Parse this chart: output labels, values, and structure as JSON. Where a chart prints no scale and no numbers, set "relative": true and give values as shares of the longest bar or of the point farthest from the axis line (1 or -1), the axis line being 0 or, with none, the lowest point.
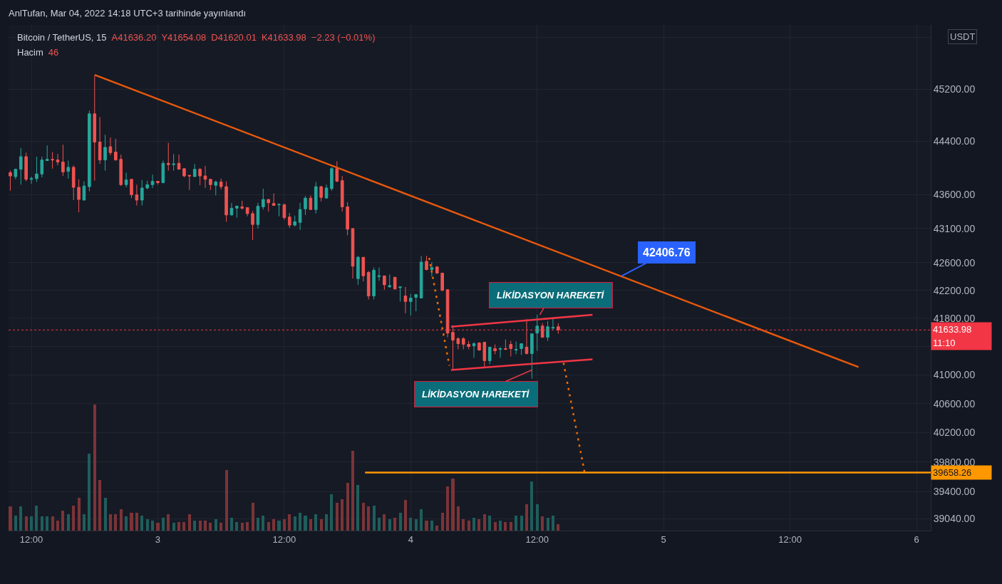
{
  "chart_data": [
    {
      "type": "candlestick",
      "title": "Bitcoin / TetherUS, 15",
      "annotations": [
        "AnlTufan, Mar 04, 2022 14:18 UTC+3 tarihinde yayınlandı",
        "A41636.20",
        "Y41654.08",
        "D41620.01",
        "K41633.98",
        "−2.23 (−0.01%)",
        "USDT",
        "11:10",
        "39658.26",
        {
          "text": "42406.76",
          "x": "2022-03-04T20:00",
          "y": 42406.76
        },
        {
          "text": "LİKİDASYON HAREKETİ",
          "x": "2022-03-04T12:15",
          "y": 41850
        },
        {
          "text": "LİKİDASYON HAREKETİ",
          "x": "2022-03-04T11:30",
          "y": 41070
        }
      ],
      "x": [
        "2022-03-02T10:00",
        "2022-03-02T10:30",
        "2022-03-02T11:00",
        "2022-03-02T11:30",
        "2022-03-02T12:00",
        "2022-03-02T12:30",
        "2022-03-02T13:00",
        "2022-03-02T13:30",
        "2022-03-02T14:00",
        "2022-03-02T14:30",
        "2022-03-02T15:00",
        "2022-03-02T15:30",
        "2022-03-02T16:00",
        "2022-03-02T16:30",
        "2022-03-02T17:00",
        "2022-03-02T17:30",
        "2022-03-02T18:00",
        "2022-03-02T18:30",
        "2022-03-02T19:00",
        "2022-03-02T19:30",
        "2022-03-02T20:00",
        "2022-03-02T20:30",
        "2022-03-02T21:00",
        "2022-03-02T21:30",
        "2022-03-02T22:00",
        "2022-03-02T22:30",
        "2022-03-02T23:00",
        "2022-03-02T23:30",
        "2022-03-03T00:00",
        "2022-03-03T00:30",
        "2022-03-03T01:00",
        "2022-03-03T01:30",
        "2022-03-03T02:00",
        "2022-03-03T02:30",
        "2022-03-03T03:00",
        "2022-03-03T03:30",
        "2022-03-03T04:00",
        "2022-03-03T04:30",
        "2022-03-03T05:00",
        "2022-03-03T05:30",
        "2022-03-03T06:00",
        "2022-03-03T06:30",
        "2022-03-03T07:00",
        "2022-03-03T07:30",
        "2022-03-03T08:00",
        "2022-03-03T08:30",
        "2022-03-03T09:00",
        "2022-03-03T09:30",
        "2022-03-03T10:00",
        "2022-03-03T10:30",
        "2022-03-03T11:00",
        "2022-03-03T11:30",
        "2022-03-03T12:00",
        "2022-03-03T12:30",
        "2022-03-03T13:00",
        "2022-03-03T13:30",
        "2022-03-03T14:00",
        "2022-03-03T14:30",
        "2022-03-03T15:00",
        "2022-03-03T15:30",
        "2022-03-03T16:00",
        "2022-03-03T16:30",
        "2022-03-03T17:00",
        "2022-03-03T17:30",
        "2022-03-03T18:00",
        "2022-03-03T18:30",
        "2022-03-03T19:00",
        "2022-03-03T19:30",
        "2022-03-03T20:00",
        "2022-03-03T20:30",
        "2022-03-03T21:00",
        "2022-03-03T21:30",
        "2022-03-03T22:00",
        "2022-03-03T22:30",
        "2022-03-03T23:00",
        "2022-03-03T23:30",
        "2022-03-04T00:00",
        "2022-03-04T00:30",
        "2022-03-04T01:00",
        "2022-03-04T01:30",
        "2022-03-04T02:00",
        "2022-03-04T02:30",
        "2022-03-04T03:00",
        "2022-03-04T03:30",
        "2022-03-04T04:00",
        "2022-03-04T04:30",
        "2022-03-04T05:00",
        "2022-03-04T05:30",
        "2022-03-04T06:00",
        "2022-03-04T06:30",
        "2022-03-04T07:00",
        "2022-03-04T07:30",
        "2022-03-04T08:00",
        "2022-03-04T08:30",
        "2022-03-04T09:00",
        "2022-03-04T09:30",
        "2022-03-04T10:00",
        "2022-03-04T10:30",
        "2022-03-04T11:00",
        "2022-03-04T11:30",
        "2022-03-04T12:00",
        "2022-03-04T12:30",
        "2022-03-04T13:00",
        "2022-03-04T13:30",
        "2022-03-04T14:00"
      ],
      "ohlc": [
        [
          43930,
          43960,
          43660,
          43880
        ],
        [
          43870,
          43990,
          43830,
          43980
        ],
        [
          43980,
          44300,
          43750,
          44170
        ],
        [
          44170,
          44230,
          43800,
          43830
        ],
        [
          43830,
          43870,
          43760,
          43840
        ],
        [
          43840,
          44170,
          43790,
          43910
        ],
        [
          43910,
          44170,
          43860,
          44120
        ],
        [
          44110,
          44340,
          44110,
          44130
        ],
        [
          44130,
          44240,
          43990,
          44120
        ],
        [
          44120,
          44210,
          44040,
          44090
        ],
        [
          44090,
          44350,
          43880,
          43940
        ],
        [
          43950,
          44110,
          43840,
          44010
        ],
        [
          44010,
          44040,
          43520,
          43710
        ],
        [
          43710,
          43830,
          43340,
          43530
        ],
        [
          43520,
          43800,
          43520,
          43730
        ],
        [
          43720,
          44870,
          43650,
          44820
        ],
        [
          44820,
          45410,
          43810,
          44390
        ],
        [
          44390,
          44770,
          44060,
          44120
        ],
        [
          44120,
          44500,
          43960,
          44310
        ],
        [
          44320,
          44460,
          44190,
          44230
        ],
        [
          44240,
          44440,
          44110,
          44120
        ],
        [
          44130,
          44200,
          43730,
          43750
        ],
        [
          43750,
          43930,
          43710,
          43820
        ],
        [
          43830,
          43830,
          43550,
          43600
        ],
        [
          43600,
          43750,
          43440,
          43520
        ],
        [
          43520,
          43820,
          43440,
          43700
        ],
        [
          43700,
          43810,
          43680,
          43750
        ],
        [
          43750,
          43900,
          43700,
          43800
        ],
        [
          43800,
          43800,
          43750,
          43780
        ],
        [
          43780,
          44110,
          43770,
          44070
        ],
        [
          44070,
          44380,
          43960,
          44050
        ],
        [
          44050,
          44210,
          43960,
          44060
        ],
        [
          44070,
          44200,
          43980,
          43980
        ],
        [
          43990,
          43990,
          43860,
          43880
        ],
        [
          43890,
          43890,
          43670,
          43880
        ],
        [
          43870,
          44060,
          43870,
          43980
        ],
        [
          43980,
          44000,
          43740,
          43880
        ],
        [
          43880,
          44030,
          43700,
          43830
        ],
        [
          43830,
          43830,
          43670,
          43750
        ],
        [
          43740,
          43810,
          43590,
          43790
        ],
        [
          43790,
          43840,
          43680,
          43720
        ],
        [
          43720,
          43800,
          43200,
          43300
        ],
        [
          43300,
          43480,
          43290,
          43400
        ],
        [
          43400,
          43440,
          43260,
          43430
        ],
        [
          43420,
          43510,
          43380,
          43400
        ],
        [
          43410,
          43410,
          43280,
          43320
        ],
        [
          43320,
          43360,
          42930,
          43160
        ],
        [
          43160,
          43480,
          43100,
          43430
        ],
        [
          43420,
          43690,
          43380,
          43530
        ],
        [
          43530,
          43530,
          43350,
          43480
        ],
        [
          43470,
          43620,
          43440,
          43440
        ],
        [
          43450,
          43470,
          43280,
          43455
        ],
        [
          43450,
          43470,
          43230,
          43260
        ],
        [
          43270,
          43330,
          43110,
          43150
        ],
        [
          43150,
          43290,
          43130,
          43200
        ],
        [
          43190,
          43480,
          43080,
          43380
        ],
        [
          43390,
          43580,
          43300,
          43550
        ],
        [
          43550,
          43590,
          43380,
          43380
        ],
        [
          43380,
          43790,
          43320,
          43720
        ],
        [
          43720,
          43730,
          43500,
          43560
        ],
        [
          43550,
          43750,
          43550,
          43700
        ],
        [
          43690,
          44010,
          43660,
          43990
        ],
        [
          43990,
          44100,
          43790,
          43800
        ],
        [
          43810,
          43880,
          43350,
          43420
        ],
        [
          43420,
          43490,
          43000,
          43090
        ],
        [
          43100,
          43100,
          42370,
          42550
        ],
        [
          42370,
          42700,
          42280,
          42680
        ],
        [
          42680,
          42680,
          42330,
          42410
        ],
        [
          42460,
          42480,
          42070,
          42120
        ],
        [
          42120,
          42530,
          42070,
          42490
        ],
        [
          42400,
          42530,
          42340,
          42410
        ],
        [
          42410,
          42410,
          42210,
          42280
        ],
        [
          42250,
          42430,
          42240,
          42270
        ],
        [
          42390,
          42390,
          42220,
          42220
        ],
        [
          42240,
          42250,
          42040,
          42250
        ],
        [
          42120,
          42250,
          41870,
          42040
        ],
        [
          42040,
          42150,
          41840,
          42090
        ],
        [
          42100,
          42140,
          41900,
          42140
        ],
        [
          42090,
          42700,
          42090,
          42610
        ],
        [
          42620,
          42700,
          42490,
          42500
        ],
        [
          42500,
          42610,
          42400,
          42530
        ],
        [
          42540,
          42550,
          42440,
          42450
        ],
        [
          42450,
          42450,
          42190,
          42200
        ],
        [
          42210,
          42210,
          41530,
          41590
        ],
        [
          41600,
          41700,
          41080,
          41490
        ],
        [
          41510,
          41530,
          41360,
          41440
        ],
        [
          41510,
          41530,
          41360,
          41430
        ],
        [
          41430,
          41480,
          41360,
          41400
        ],
        [
          41410,
          41460,
          41240,
          41440
        ],
        [
          41450,
          41460,
          41340,
          41350
        ],
        [
          41460,
          41460,
          41110,
          41200
        ],
        [
          41200,
          41390,
          41150,
          41390
        ],
        [
          41370,
          41430,
          41290,
          41340
        ],
        [
          41360,
          41390,
          41240,
          41370
        ],
        [
          41370,
          41500,
          41350,
          41360
        ],
        [
          41430,
          41480,
          41260,
          41370
        ],
        [
          41350,
          41470,
          41290,
          41360
        ],
        [
          41370,
          41440,
          41280,
          41440
        ],
        [
          41390,
          41790,
          41290,
          41300
        ],
        [
          41300,
          41580,
          40950,
          41580
        ],
        [
          41590,
          41850,
          41340,
          41690
        ],
        [
          41690,
          41730,
          41530,
          41530
        ],
        [
          41530,
          41760,
          41480,
          41680
        ],
        [
          41660,
          41790,
          41640,
          41670
        ],
        [
          41680,
          41730,
          41580,
          41634
        ]
      ],
      "colors": [
        "#ef5350",
        "#26a69a",
        "#26a69a",
        "#ef5350",
        "#26a69a",
        "#26a69a",
        "#26a69a",
        "#26a69a",
        "#ef5350",
        "#ef5350",
        "#ef5350",
        "#26a69a",
        "#ef5350",
        "#ef5350",
        "#26a69a",
        "#26a69a",
        "#ef5350",
        "#ef5350",
        "#26a69a",
        "#ef5350",
        "#ef5350",
        "#ef5350",
        "#26a69a",
        "#ef5350",
        "#ef5350",
        "#26a69a",
        "#26a69a",
        "#26a69a",
        "#ef5350",
        "#26a69a",
        "#ef5350",
        "#26a69a",
        "#ef5350",
        "#ef5350",
        "#ef5350",
        "#26a69a",
        "#ef5350",
        "#ef5350",
        "#ef5350",
        "#26a69a",
        "#ef5350",
        "#ef5350",
        "#26a69a",
        "#26a69a",
        "#ef5350",
        "#ef5350",
        "#ef5350",
        "#26a69a",
        "#26a69a",
        "#ef5350",
        "#ef5350",
        "#26a69a",
        "#ef5350",
        "#ef5350",
        "#26a69a",
        "#26a69a",
        "#26a69a",
        "#ef5350",
        "#26a69a",
        "#ef5350",
        "#26a69a",
        "#26a69a",
        "#ef5350",
        "#ef5350",
        "#ef5350",
        "#ef5350",
        "#26a69a",
        "#ef5350",
        "#ef5350",
        "#26a69a",
        "#26a69a",
        "#ef5350",
        "#26a69a",
        "#ef5350",
        "#26a69a",
        "#ef5350",
        "#26a69a",
        "#26a69a",
        "#26a69a",
        "#ef5350",
        "#26a69a",
        "#ef5350",
        "#ef5350",
        "#ef5350",
        "#ef5350",
        "#ef5350",
        "#ef5350",
        "#ef5350",
        "#26a69a",
        "#ef5350",
        "#ef5350",
        "#26a69a",
        "#ef5350",
        "#26a69a",
        "#ef5350",
        "#ef5350",
        "#26a69a",
        "#26a69a",
        "#ef5350",
        "#26a69a",
        "#26a69a",
        "#ef5350",
        "#26a69a",
        "#26a69a",
        "#ef5350"
      ],
      "series": [
        {
          "type": "line",
          "color": "#e8590c",
          "x": [
            "2022-03-02T18:00",
            "2022-03-05T18:30"
          ],
          "values": [
            45420,
            41110
          ]
        },
        {
          "type": "line",
          "color": "#f23645",
          "x": [
            "2022-03-04T03:50",
            "2022-03-04T17:15"
          ],
          "values": [
            41680,
            41850
          ]
        },
        {
          "type": "line",
          "color": "#f23645",
          "x": [
            "2022-03-04T03:50",
            "2022-03-04T17:15"
          ],
          "values": [
            41070,
            41220
          ]
        },
        {
          "type": "line",
          "color": "#ef6c00",
          "line_style": "dotted",
          "x": [
            "2022-03-04T01:45",
            "2022-03-04T03:40"
          ],
          "values": [
            42670,
            41130
          ]
        },
        {
          "type": "line",
          "color": "#ef6c00",
          "line_style": "dotted",
          "x": [
            "2022-03-04T14:30",
            "2022-03-04T16:30"
          ],
          "values": [
            41170,
            39660
          ]
        },
        {
          "type": "line",
          "color": "#ff9800",
          "x": [
            "2022-03-03T19:40",
            "2022-03-06T01:21"
          ],
          "values": [
            39658.26,
            39658.26
          ]
        }
      ],
      "ref_lines": [
        {
          "axis": "y",
          "value": 41633.98,
          "label": "41633.98",
          "color": "#f23645",
          "line_style": "dotted"
        }
      ],
      "xlim": [
        "2022-03-02T09:50",
        "2022-03-06T01:21"
      ],
      "xticks": [
        {
          "value": "2022-03-02T12:00",
          "label": "12:00"
        },
        {
          "value": "2022-03-03",
          "label": "3"
        },
        {
          "value": "2022-03-03T12:00",
          "label": "12:00"
        },
        {
          "value": "2022-03-04",
          "label": "4"
        },
        {
          "value": "2022-03-04T12:00",
          "label": "12:00"
        },
        {
          "value": "2022-03-05",
          "label": "5"
        },
        {
          "value": "2022-03-05T12:00",
          "label": "12:00"
        },
        {
          "value": "2022-03-06",
          "label": "6"
        }
      ],
      "ylim": [
        38880,
        46200
      ],
      "yticks": [
        {
          "value": 39040,
          "label": "39040.00"
        },
        {
          "value": 39400,
          "label": "39400.00"
        },
        {
          "value": 39800,
          "label": "39800.00"
        },
        {
          "value": 40200,
          "label": "40200.00"
        },
        {
          "value": 40600,
          "label": "40600.00"
        },
        {
          "value": 41000,
          "label": "41000.00"
        },
        {
          "value": 41400,
          "label": null
        },
        {
          "value": 41800,
          "label": "41800.00"
        },
        {
          "value": 42200,
          "label": "42200.00"
        },
        {
          "value": 42600,
          "label": "42600.00"
        },
        {
          "value": 43100,
          "label": "43100.00"
        },
        {
          "value": 43600,
          "label": "43600.00"
        },
        {
          "value": 44400,
          "label": "44400.00"
        },
        {
          "value": 45200,
          "label": "45200.00"
        },
        {
          "value": 46000,
          "label": null
        }
      ],
      "log": true,
      "grid": true
    },
    {
      "type": "bar",
      "title": "Hacim",
      "annotations": [
        "46"
      ],
      "relative": true,
      "tick_labels": false,
      "x": [
        "2022-03-02T10:00",
        "2022-03-02T10:30",
        "2022-03-02T11:00",
        "2022-03-02T11:30",
        "2022-03-02T12:00",
        "2022-03-02T12:30",
        "2022-03-02T13:00",
        "2022-03-02T13:30",
        "2022-03-02T14:00",
        "2022-03-02T14:30",
        "2022-03-02T15:00",
        "2022-03-02T15:30",
        "2022-03-02T16:00",
        "2022-03-02T16:30",
        "2022-03-02T17:00",
        "2022-03-02T17:30",
        "2022-03-02T18:00",
        "2022-03-02T18:30",
        "2022-03-02T19:00",
        "2022-03-02T19:30",
        "2022-03-02T20:00",
        "2022-03-02T20:30",
        "2022-03-02T21:00",
        "2022-03-02T21:30",
        "2022-03-02T22:00",
        "2022-03-02T22:30",
        "2022-03-02T23:00",
        "2022-03-02T23:30",
        "2022-03-03T00:00",
        "2022-03-03T00:30",
        "2022-03-03T01:00",
        "2022-03-03T01:30",
        "2022-03-03T02:00",
        "2022-03-03T02:30",
        "2022-03-03T03:00",
        "2022-03-03T03:30",
        "2022-03-03T04:00",
        "2022-03-03T04:30",
        "2022-03-03T05:00",
        "2022-03-03T05:30",
        "2022-03-03T06:00",
        "2022-03-03T06:30",
        "2022-03-03T07:00",
        "2022-03-03T07:30",
        "2022-03-03T08:00",
        "2022-03-03T08:30",
        "2022-03-03T09:00",
        "2022-03-03T09:30",
        "2022-03-03T10:00",
        "2022-03-03T10:30",
        "2022-03-03T11:00",
        "2022-03-03T11:30",
        "2022-03-03T12:00",
        "2022-03-03T12:30",
        "2022-03-03T13:00",
        "2022-03-03T13:30",
        "2022-03-03T14:00",
        "2022-03-03T14:30",
        "2022-03-03T15:00",
        "2022-03-03T15:30",
        "2022-03-03T16:00",
        "2022-03-03T16:30",
        "2022-03-03T17:00",
        "2022-03-03T17:30",
        "2022-03-03T18:00",
        "2022-03-03T18:30",
        "2022-03-03T19:00",
        "2022-03-03T19:30",
        "2022-03-03T20:00",
        "2022-03-03T20:30",
        "2022-03-03T21:00",
        "2022-03-03T21:30",
        "2022-03-03T22:00",
        "2022-03-03T22:30",
        "2022-03-03T23:00",
        "2022-03-03T23:30",
        "2022-03-04T00:00",
        "2022-03-04T00:30",
        "2022-03-04T01:00",
        "2022-03-04T01:30",
        "2022-03-04T02:00",
        "2022-03-04T02:30",
        "2022-03-04T03:00",
        "2022-03-04T03:30",
        "2022-03-04T04:00",
        "2022-03-04T04:30",
        "2022-03-04T05:00",
        "2022-03-04T05:30",
        "2022-03-04T06:00",
        "2022-03-04T06:30",
        "2022-03-04T07:00",
        "2022-03-04T07:30",
        "2022-03-04T08:00",
        "2022-03-04T08:30",
        "2022-03-04T09:00",
        "2022-03-04T09:30",
        "2022-03-04T10:00",
        "2022-03-04T10:30",
        "2022-03-04T11:00",
        "2022-03-04T11:30",
        "2022-03-04T12:00",
        "2022-03-04T12:30",
        "2022-03-04T13:00",
        "2022-03-04T13:30",
        "2022-03-04T14:00"
      ],
      "values": [
        0.19,
        0.12,
        0.19,
        0.11,
        0.11,
        0.2,
        0.11,
        0.11,
        0.11,
        0.08,
        0.16,
        0.13,
        0.2,
        0.26,
        0.13,
        0.61,
        1,
        0.4,
        0.26,
        0.13,
        0.13,
        0.17,
        0.11,
        0.14,
        0.14,
        0.12,
        0.09,
        0.08,
        0.06,
        0.1,
        0.13,
        0.06,
        0.07,
        0.07,
        0.13,
        0.08,
        0.08,
        0.08,
        0.06,
        0.09,
        0.06,
        0.48,
        0.1,
        0.07,
        0.06,
        0.07,
        0.22,
        0.1,
        0.12,
        0.07,
        0.09,
        0.08,
        0.09,
        0.13,
        0.11,
        0.14,
        0.12,
        0.09,
        0.13,
        0.09,
        0.13,
        0.29,
        0.22,
        0.25,
        0.38,
        0.63,
        0.36,
        0.22,
        0.19,
        0.2,
        0.1,
        0.13,
        0.09,
        0.1,
        0.14,
        0.24,
        0.1,
        0.09,
        0.17,
        0.08,
        0.08,
        0.04,
        0.14,
        0.35,
        0.41,
        0.19,
        0.09,
        0.08,
        0.1,
        0.09,
        0.13,
        0.12,
        0.07,
        0.08,
        0.07,
        0.07,
        0.12,
        0.12,
        0.21,
        0.39,
        0.21,
        0.11,
        0.1,
        0.12,
        0.05
      ],
      "colors": [
        "#7c3437",
        "#1f5e5b",
        "#1f5e5b",
        "#7c3437",
        "#1f5e5b",
        "#1f5e5b",
        "#1f5e5b",
        "#1f5e5b",
        "#7c3437",
        "#7c3437",
        "#7c3437",
        "#1f5e5b",
        "#7c3437",
        "#7c3437",
        "#1f5e5b",
        "#1f5e5b",
        "#7c3437",
        "#7c3437",
        "#1f5e5b",
        "#7c3437",
        "#7c3437",
        "#7c3437",
        "#1f5e5b",
        "#7c3437",
        "#7c3437",
        "#1f5e5b",
        "#1f5e5b",
        "#1f5e5b",
        "#7c3437",
        "#1f5e5b",
        "#7c3437",
        "#1f5e5b",
        "#7c3437",
        "#7c3437",
        "#7c3437",
        "#1f5e5b",
        "#7c3437",
        "#7c3437",
        "#7c3437",
        "#1f5e5b",
        "#7c3437",
        "#7c3437",
        "#1f5e5b",
        "#1f5e5b",
        "#7c3437",
        "#7c3437",
        "#7c3437",
        "#1f5e5b",
        "#1f5e5b",
        "#7c3437",
        "#7c3437",
        "#1f5e5b",
        "#7c3437",
        "#7c3437",
        "#1f5e5b",
        "#1f5e5b",
        "#1f5e5b",
        "#7c3437",
        "#1f5e5b",
        "#7c3437",
        "#1f5e5b",
        "#1f5e5b",
        "#7c3437",
        "#7c3437",
        "#7c3437",
        "#7c3437",
        "#1f5e5b",
        "#7c3437",
        "#7c3437",
        "#1f5e5b",
        "#1f5e5b",
        "#7c3437",
        "#1f5e5b",
        "#7c3437",
        "#1f5e5b",
        "#7c3437",
        "#1f5e5b",
        "#1f5e5b",
        "#1f5e5b",
        "#7c3437",
        "#1f5e5b",
        "#7c3437",
        "#7c3437",
        "#7c3437",
        "#7c3437",
        "#7c3437",
        "#7c3437",
        "#7c3437",
        "#1f5e5b",
        "#7c3437",
        "#7c3437",
        "#1f5e5b",
        "#7c3437",
        "#1f5e5b",
        "#7c3437",
        "#7c3437",
        "#1f5e5b",
        "#1f5e5b",
        "#7c3437",
        "#1f5e5b",
        "#1f5e5b",
        "#7c3437",
        "#1f5e5b",
        "#1f5e5b",
        "#7c3437"
      ],
      "xlim": [
        "2022-03-02T09:50",
        "2022-03-06T01:21"
      ]
    }
  ]
}
